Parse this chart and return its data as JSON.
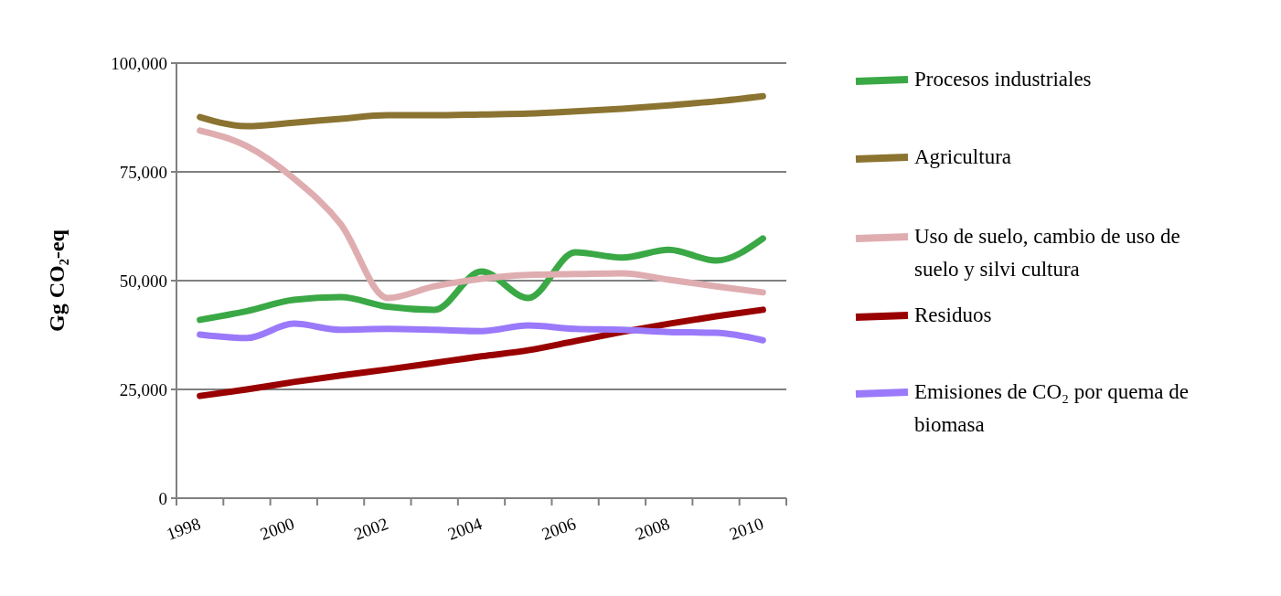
{
  "chart_data": {
    "type": "line",
    "ylabel": "Gg CO₂-eq",
    "categories": [
      "1998",
      null,
      "2000",
      null,
      "2002",
      null,
      "2004",
      null,
      "2006",
      null,
      "2008",
      null,
      "2010"
    ],
    "series": [
      {
        "name": "Procesos industriales",
        "color": "#3aa845",
        "values": [
          41000,
          43000,
          45600,
          46200,
          44000,
          43300,
          52100,
          46000,
          56500,
          55300,
          57100,
          54600,
          59700
        ]
      },
      {
        "name": "Agricultura",
        "color": "#8b7431",
        "values": [
          87600,
          85500,
          86300,
          87200,
          88000,
          88000,
          88200,
          88400,
          88900,
          89500,
          90300,
          91200,
          92400
        ]
      },
      {
        "name": "Uso de suelo, cambio de uso de suelo y silvi cultura",
        "color": "#dfadb0",
        "values": [
          84500,
          80900,
          73500,
          63000,
          46000,
          48700,
          50400,
          51300,
          51500,
          51700,
          50200,
          48700,
          47300
        ]
      },
      {
        "name": "Residuos",
        "color": "#990000",
        "values": [
          23500,
          25000,
          26700,
          28200,
          29600,
          31100,
          32600,
          34000,
          36100,
          38200,
          40100,
          41800,
          43300
        ]
      },
      {
        "name": "Emisiones de CO₂ por quema de biomasa",
        "color": "#9a79fa",
        "values": [
          37600,
          36800,
          40100,
          38700,
          38900,
          38700,
          38400,
          39700,
          38900,
          38700,
          38200,
          38000,
          36300
        ]
      }
    ],
    "ylim": [
      0,
      100000
    ],
    "yticks": [
      0,
      {
        "value": 25000,
        "label": "25,000"
      },
      {
        "value": 50000,
        "label": "50,000"
      },
      {
        "value": 75000,
        "label": "75,000"
      },
      {
        "value": 100000,
        "label": "100,000"
      }
    ],
    "grid": "y",
    "legend": "right",
    "marker": "none",
    "line_style": "solid"
  }
}
